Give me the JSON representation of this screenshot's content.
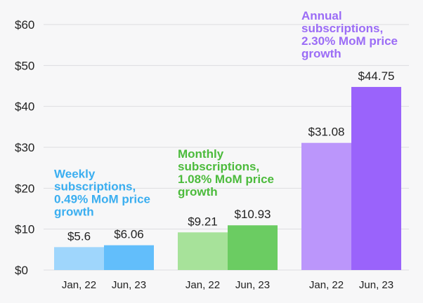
{
  "chart_data": {
    "type": "bar",
    "title": "",
    "xlabel": "",
    "ylabel": "",
    "ylim": [
      0,
      60
    ],
    "yticks": [
      0,
      10,
      20,
      30,
      40,
      50,
      60
    ],
    "ytick_labels": [
      "$0",
      "$10",
      "$20",
      "$30",
      "$40",
      "$50",
      "$60"
    ],
    "grid": true,
    "groups": [
      {
        "name": "Weekly",
        "annotation": [
          "Weekly",
          "subscriptions,",
          "0.49% MoM price",
          "growth"
        ],
        "annotation_color": "#3aaef0",
        "bars": [
          {
            "category": "Jan, 22",
            "value": 5.6,
            "label": "$5.6",
            "color": "#9fd6fc"
          },
          {
            "category": "Jun, 23",
            "value": 6.06,
            "label": "$6.06",
            "color": "#62befb"
          }
        ]
      },
      {
        "name": "Monthly",
        "annotation": [
          "Monthly",
          "subscriptions,",
          "1.08% MoM price",
          "growth"
        ],
        "annotation_color": "#4cbb3c",
        "bars": [
          {
            "category": "Jan, 22",
            "value": 9.21,
            "label": "$9.21",
            "color": "#a7e29a"
          },
          {
            "category": "Jun, 23",
            "value": 10.93,
            "label": "$10.93",
            "color": "#6bcc62"
          }
        ]
      },
      {
        "name": "Annual",
        "annotation": [
          "Annual",
          "subscriptions,",
          "2.30% MoM price",
          "growth"
        ],
        "annotation_color": "#9b6cf6",
        "bars": [
          {
            "category": "Jan, 22",
            "value": 31.08,
            "label": "$31.08",
            "color": "#bb96fb"
          },
          {
            "category": "Jun, 23",
            "value": 44.75,
            "label": "$44.75",
            "color": "#9a63fb"
          }
        ]
      }
    ]
  }
}
